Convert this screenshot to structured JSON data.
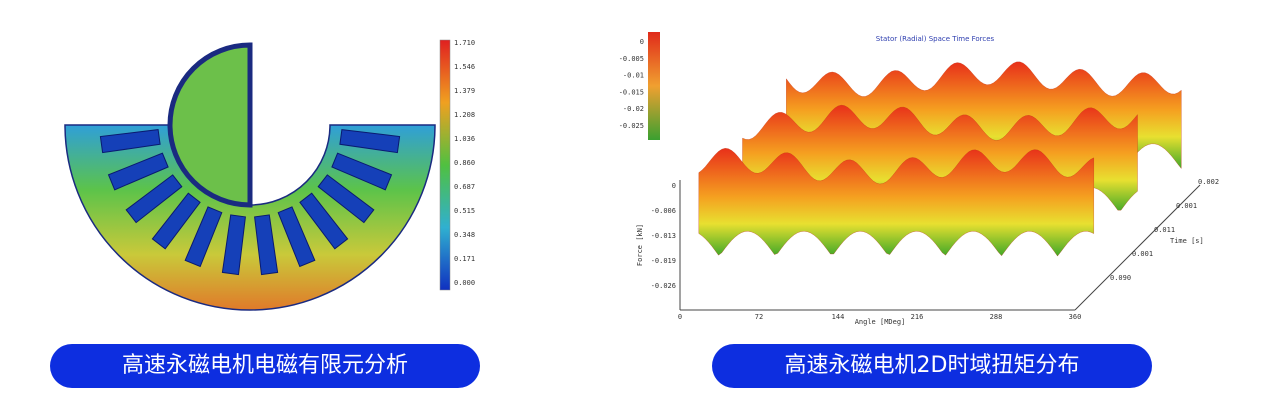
{
  "left_figure": {
    "colorbar_labels": [
      "1.710",
      "1.546",
      "1.379",
      "1.208",
      "1.036",
      "0.860",
      "0.687",
      "0.515",
      "0.348",
      "0.171",
      "0.000"
    ]
  },
  "left_caption": "高速永磁电机电磁有限元分析",
  "right_figure": {
    "title": "Stator (Radial) Space Time Forces",
    "colorbar_labels": [
      "0",
      "-0.005",
      "-0.01",
      "-0.015",
      "-0.02",
      "-0.025"
    ],
    "y_label": "Force [kN]",
    "y_ticks": [
      "0",
      "-0.006",
      "-0.013",
      "-0.019",
      "-0.026"
    ],
    "x_label": "Angle [MDeg]",
    "x_ticks": [
      "0",
      "72",
      "144",
      "216",
      "288",
      "360"
    ],
    "depth_label": "Time [s]",
    "depth_ticks": [
      "0.090",
      "0.001",
      "0.011",
      "0.001",
      "0.002"
    ]
  },
  "right_caption": "高速永磁电机2D时域扭矩分布"
}
